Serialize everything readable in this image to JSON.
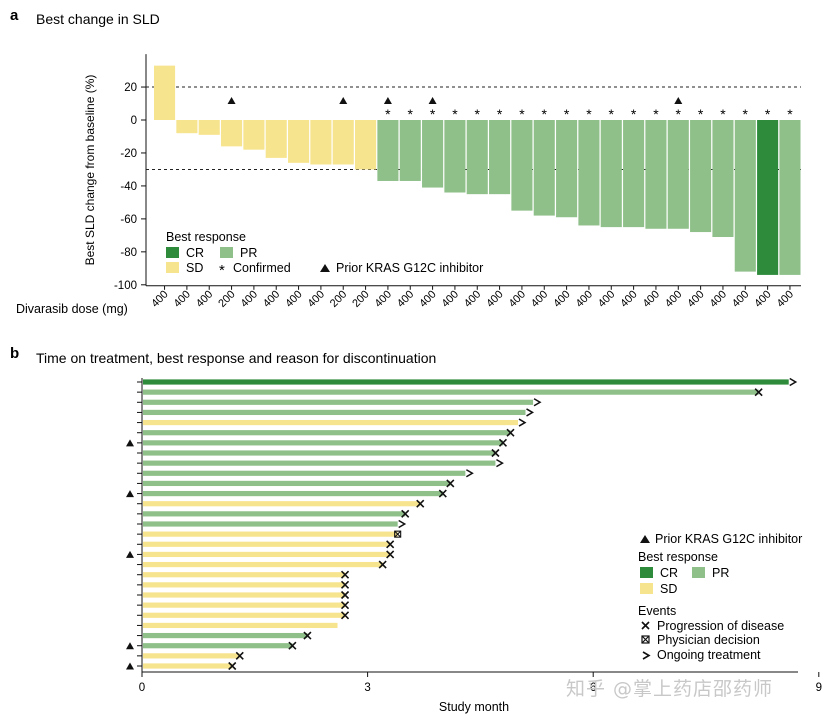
{
  "chart_data": [
    {
      "type": "bar",
      "panel_label": "a",
      "title": "Best change in SLD",
      "ylabel": "Best SLD change from baseline (%)",
      "xlabel": "Divarasib dose (mg)",
      "ylim": [
        -100,
        40
      ],
      "yticks": [
        20,
        0,
        -20,
        -40,
        -60,
        -80,
        -100
      ],
      "reference_lines": [
        20,
        -30
      ],
      "values": [
        33,
        -8,
        -9,
        -16,
        -18,
        -23,
        -26,
        -27,
        -27,
        -30,
        -37,
        -37,
        -41,
        -44,
        -45,
        -45,
        -55,
        -58,
        -59,
        -64,
        -65,
        -65,
        -66,
        -66,
        -68,
        -71,
        -92,
        -94,
        -94
      ],
      "doses": [
        "400",
        "400",
        "400",
        "200",
        "400",
        "400",
        "400",
        "400",
        "200",
        "200",
        "400",
        "400",
        "400",
        "400",
        "400",
        "400",
        "400",
        "400",
        "400",
        "400",
        "400",
        "400",
        "400",
        "400",
        "400",
        "400",
        "400",
        "400",
        "400"
      ],
      "responses": [
        "SD",
        "SD",
        "SD",
        "SD",
        "SD",
        "SD",
        "SD",
        "SD",
        "SD",
        "SD",
        "PR",
        "PR",
        "PR",
        "PR",
        "PR",
        "PR",
        "PR",
        "PR",
        "PR",
        "PR",
        "PR",
        "PR",
        "PR",
        "PR",
        "PR",
        "PR",
        "PR",
        "CR",
        "PR"
      ],
      "confirmed": [
        false,
        false,
        false,
        false,
        false,
        false,
        false,
        false,
        false,
        false,
        true,
        true,
        true,
        true,
        true,
        true,
        true,
        true,
        true,
        true,
        true,
        true,
        true,
        true,
        true,
        true,
        true,
        true,
        true
      ],
      "prior_kras": [
        false,
        false,
        false,
        true,
        false,
        false,
        false,
        false,
        true,
        false,
        true,
        false,
        true,
        false,
        false,
        false,
        false,
        false,
        false,
        false,
        false,
        false,
        false,
        true,
        false,
        false,
        false,
        false,
        false
      ],
      "legend": {
        "title": "Best response",
        "cr": "CR",
        "pr": "PR",
        "sd": "SD",
        "confirmed": "Confirmed",
        "prior": "Prior KRAS G12C inhibitor"
      }
    },
    {
      "type": "swimmer",
      "panel_label": "b",
      "title": "Time on treatment, best response and reason for discontinuation",
      "xlabel": "Study month",
      "xlim": [
        0,
        8.6
      ],
      "xticks": [
        0,
        3,
        6,
        9
      ],
      "durations": [
        8.6,
        8.2,
        5.2,
        5.1,
        5.0,
        4.9,
        4.8,
        4.7,
        4.7,
        4.3,
        4.1,
        4.0,
        3.7,
        3.5,
        3.4,
        3.4,
        3.3,
        3.3,
        3.2,
        2.7,
        2.7,
        2.7,
        2.7,
        2.7,
        2.6,
        2.2,
        2.0,
        1.3,
        1.2
      ],
      "responses": [
        "CR",
        "PR",
        "PR",
        "PR",
        "SD",
        "PR",
        "PR",
        "PR",
        "PR",
        "PR",
        "PR",
        "PR",
        "SD",
        "PR",
        "PR",
        "SD",
        "SD",
        "SD",
        "SD",
        "SD",
        "SD",
        "SD",
        "SD",
        "SD",
        "SD",
        "PR",
        "PR",
        "SD",
        "SD"
      ],
      "events": [
        "ongoing",
        "progression",
        "ongoing",
        "ongoing",
        "ongoing",
        "progression",
        "progression",
        "progression",
        "ongoing",
        "ongoing",
        "progression",
        "progression",
        "progression",
        "progression",
        "ongoing",
        "physician",
        "progression",
        "progression",
        "progression",
        "progression",
        "progression",
        "progression",
        "progression",
        "progression",
        "none",
        "progression",
        "progression",
        "progression",
        "progression"
      ],
      "prior_kras": [
        false,
        false,
        false,
        false,
        false,
        false,
        true,
        false,
        false,
        false,
        false,
        true,
        false,
        false,
        false,
        false,
        false,
        true,
        false,
        false,
        false,
        false,
        false,
        false,
        false,
        false,
        true,
        false,
        true
      ],
      "legend": {
        "prior": "Prior KRAS G12C inhibitor",
        "response_title": "Best response",
        "cr": "CR",
        "pr": "PR",
        "sd": "SD",
        "events_title": "Events",
        "progression": "Progression of disease",
        "physician": "Physician decision",
        "ongoing": "Ongoing treatment"
      }
    }
  ],
  "colors": {
    "cr": "#2e8b3c",
    "pr": "#8fc08a",
    "sd": "#f7e48f",
    "ink": "#111111"
  },
  "watermark": "知乎 @掌上药店邵药师"
}
